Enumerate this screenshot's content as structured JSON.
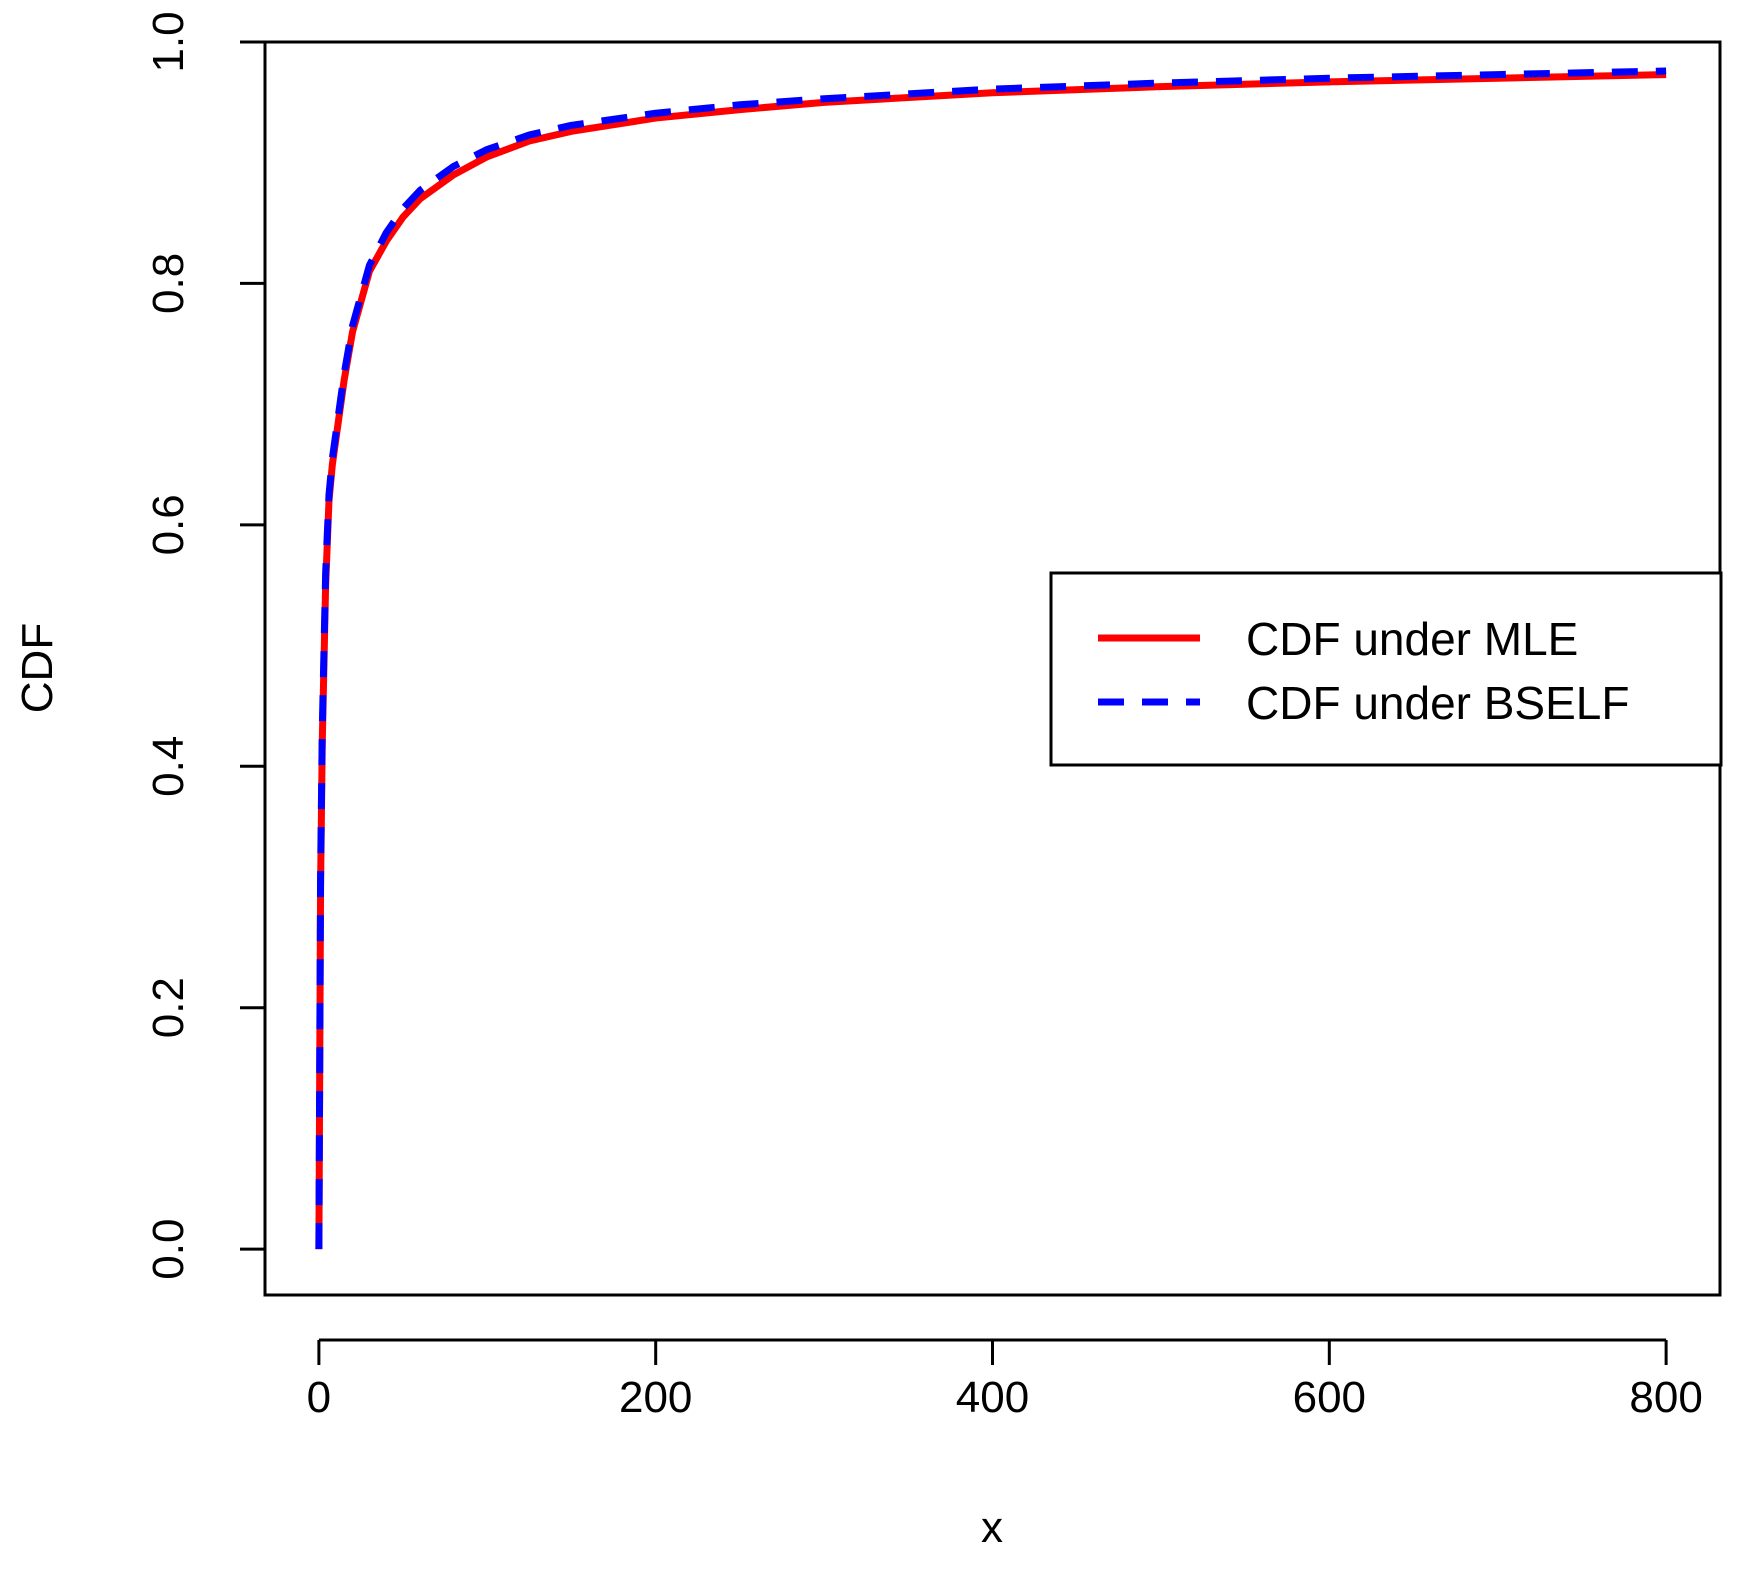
{
  "chart_data": {
    "type": "line",
    "title": "",
    "xlabel": "x",
    "ylabel": "CDF",
    "xlim": [
      -32,
      832
    ],
    "ylim": [
      -0.038,
      1.0
    ],
    "x_ticks": [
      0,
      200,
      400,
      600,
      800
    ],
    "x_tick_labels": [
      "0",
      "200",
      "400",
      "600",
      "800"
    ],
    "y_ticks": [
      0.0,
      0.2,
      0.4,
      0.6,
      0.8,
      1.0
    ],
    "y_tick_labels": [
      "0.0",
      "0.2",
      "0.4",
      "0.6",
      "0.8",
      "1.0"
    ],
    "grid": false,
    "legend_position": "right",
    "series": [
      {
        "name": "CDF under MLE",
        "color": "#ff0000",
        "style": "solid",
        "x": [
          0,
          1,
          2,
          4,
          6,
          8,
          10,
          15,
          20,
          30,
          40,
          50,
          60,
          80,
          100,
          125,
          150,
          200,
          250,
          300,
          400,
          500,
          600,
          700,
          800
        ],
        "y": [
          0.0,
          0.3,
          0.42,
          0.55,
          0.62,
          0.65,
          0.67,
          0.72,
          0.76,
          0.81,
          0.835,
          0.855,
          0.87,
          0.89,
          0.905,
          0.918,
          0.926,
          0.937,
          0.944,
          0.95,
          0.958,
          0.963,
          0.967,
          0.97,
          0.973
        ]
      },
      {
        "name": "CDF under BSELF",
        "color": "#0000ff",
        "style": "dashed",
        "x": [
          0,
          1,
          2,
          4,
          6,
          8,
          10,
          15,
          20,
          30,
          40,
          50,
          60,
          80,
          100,
          125,
          150,
          200,
          250,
          300,
          400,
          500,
          600,
          700,
          800
        ],
        "y": [
          0.0,
          0.31,
          0.43,
          0.56,
          0.625,
          0.655,
          0.675,
          0.725,
          0.765,
          0.815,
          0.842,
          0.862,
          0.877,
          0.897,
          0.911,
          0.923,
          0.931,
          0.941,
          0.948,
          0.953,
          0.961,
          0.966,
          0.97,
          0.973,
          0.976
        ]
      }
    ]
  }
}
